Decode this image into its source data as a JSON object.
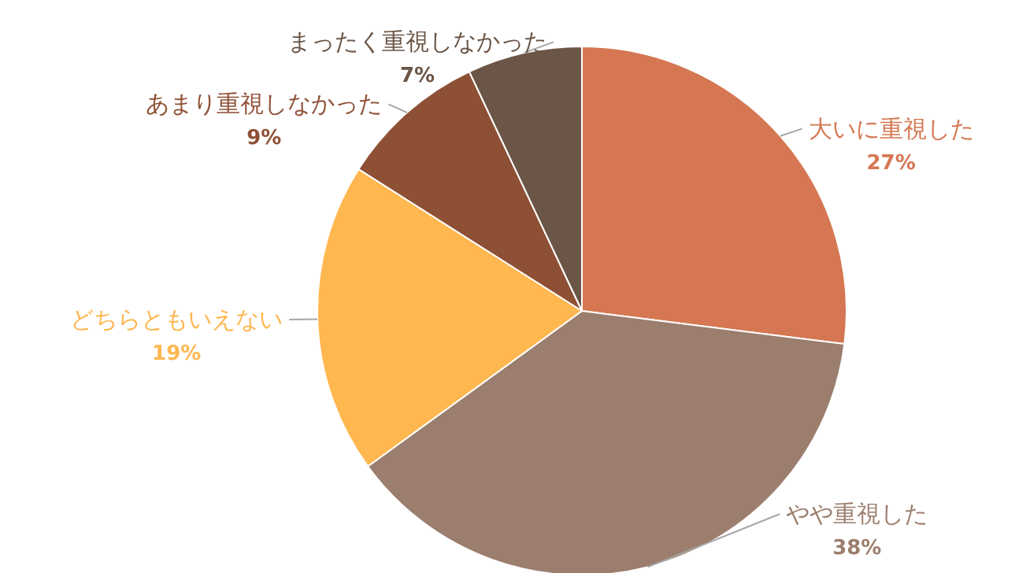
{
  "chart_data": {
    "type": "pie",
    "categories": [
      "大いに重視した",
      "やや重視した",
      "どちらともいえない",
      "あまり重視しなかった",
      "まったく重視しなかった"
    ],
    "values": [
      27,
      38,
      19,
      9,
      7
    ],
    "colors": [
      "#d57752",
      "#9c7e6e",
      "#ffb74f",
      "#8e5035",
      "#6b5546"
    ],
    "value_labels": [
      "27%",
      "38%",
      "19%",
      "9%",
      "7%"
    ]
  }
}
